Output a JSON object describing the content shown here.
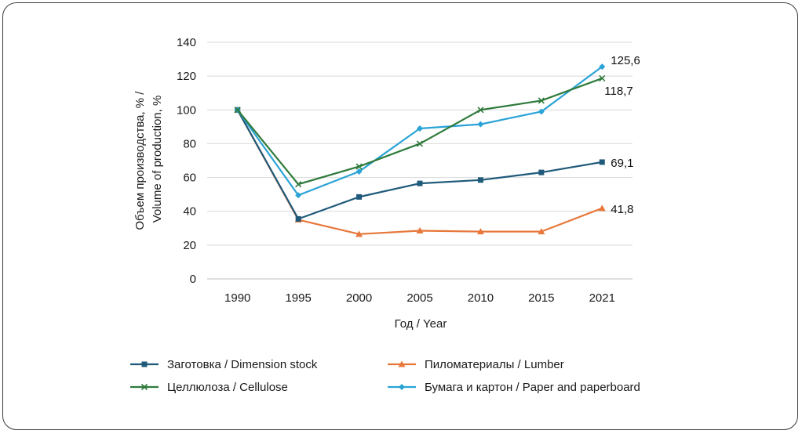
{
  "chart_data": {
    "type": "line",
    "categories": [
      "1990",
      "1995",
      "2000",
      "2005",
      "2010",
      "2015",
      "2021"
    ],
    "xlabel": "Год / Year",
    "ylabel_line1": "Объем производства, % /",
    "ylabel_line2": "Volume of production, %",
    "ylim": [
      0,
      140
    ],
    "yticks": [
      0,
      20,
      40,
      60,
      80,
      100,
      120,
      140
    ],
    "grid": "horizontal",
    "legend_position": "bottom",
    "series": [
      {
        "name": "Заготовка / Dimension stock",
        "color": "#1f5a7a",
        "marker": "square",
        "values": [
          100,
          35.5,
          48.5,
          56.5,
          58.5,
          63,
          69.1
        ],
        "end_label": "69,1"
      },
      {
        "name": "Пиломатериалы / Lumber",
        "color": "#e8773a",
        "marker": "triangle",
        "values": [
          100,
          35,
          26.5,
          28.5,
          28,
          28,
          41.8
        ],
        "end_label": "41,8"
      },
      {
        "name": "Целлюлоза / Cellulose",
        "color": "#2e7a3a",
        "marker": "x",
        "values": [
          100,
          56,
          66.5,
          80,
          100,
          105.5,
          118.7
        ],
        "end_label": "118,7"
      },
      {
        "name": "Бумага и картон / Paper and paperboard",
        "color": "#2aa3d6",
        "marker": "diamond",
        "values": [
          100,
          49.5,
          63.5,
          89,
          91.5,
          99,
          125.6
        ],
        "end_label": "125,6"
      }
    ]
  }
}
